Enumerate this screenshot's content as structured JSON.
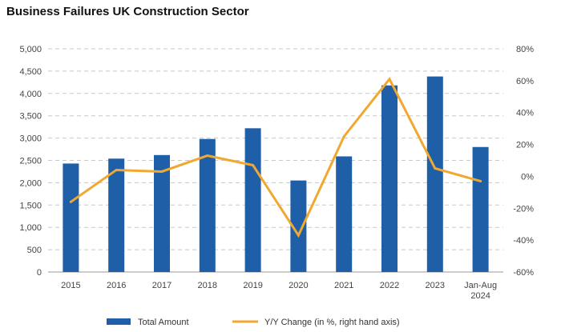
{
  "chart_data": {
    "type": "bar",
    "title": "Business Failures UK Construction Sector",
    "categories": [
      "2015",
      "2016",
      "2017",
      "2018",
      "2019",
      "2020",
      "2021",
      "2022",
      "2023",
      "Jan-Aug 2024"
    ],
    "series": [
      {
        "name": "Total Amount",
        "type": "bar",
        "axis": "left",
        "color": "#1f5fa8",
        "values": [
          2430,
          2540,
          2620,
          2980,
          3220,
          2050,
          2590,
          4180,
          4380,
          2800
        ]
      },
      {
        "name": "Y/Y Change (in %, right hand axis)",
        "type": "line",
        "axis": "right",
        "color": "#f0a830",
        "values": [
          -16,
          4,
          3,
          13,
          7,
          -37,
          25,
          61,
          5,
          -3
        ]
      }
    ],
    "y_left": {
      "min": 0,
      "max": 5000,
      "ticks": [
        "0",
        "500",
        "1,000",
        "1,500",
        "2,000",
        "2,500",
        "3,000",
        "3,500",
        "4,000",
        "4,500",
        "5,000"
      ]
    },
    "y_right": {
      "min": -60,
      "max": 80,
      "ticks": [
        "-60%",
        "-40%",
        "-20%",
        "0%",
        "20%",
        "40%",
        "60%",
        "80%"
      ]
    },
    "grid": true,
    "legend": "bottom"
  }
}
